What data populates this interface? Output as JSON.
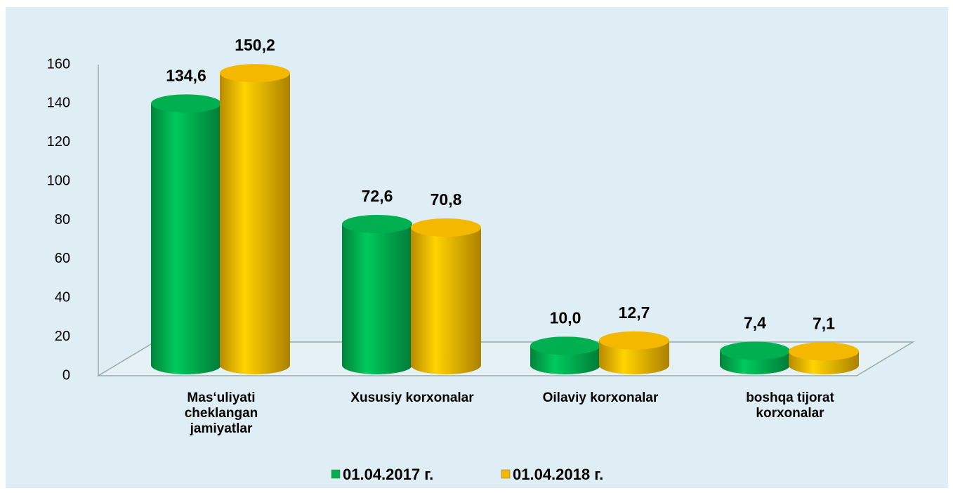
{
  "chart_data": {
    "type": "bar3d",
    "categories": [
      "Mas‘uliyati cheklangan jamiyatlar",
      "Xususiy korxonalar",
      "Oilaviy korxonalar",
      "boshqa tijorat korxonalar"
    ],
    "series": [
      {
        "name": "01.04.2017 г.",
        "color": "#00b050",
        "values": [
          134.6,
          72.6,
          10.0,
          7.4
        ],
        "value_labels": [
          "134,6",
          "72,6",
          "10,0",
          "7,4"
        ]
      },
      {
        "name": "01.04.2018 г.",
        "color": "#f5b800",
        "values": [
          150.2,
          70.8,
          12.7,
          7.1
        ],
        "value_labels": [
          "150,2",
          "70,8",
          "12,7",
          "7,1"
        ]
      }
    ],
    "ylim": [
      0,
      160
    ],
    "yticks": [
      0,
      20,
      40,
      60,
      80,
      100,
      120,
      140,
      160
    ],
    "grid": false,
    "legend": "bottom"
  }
}
